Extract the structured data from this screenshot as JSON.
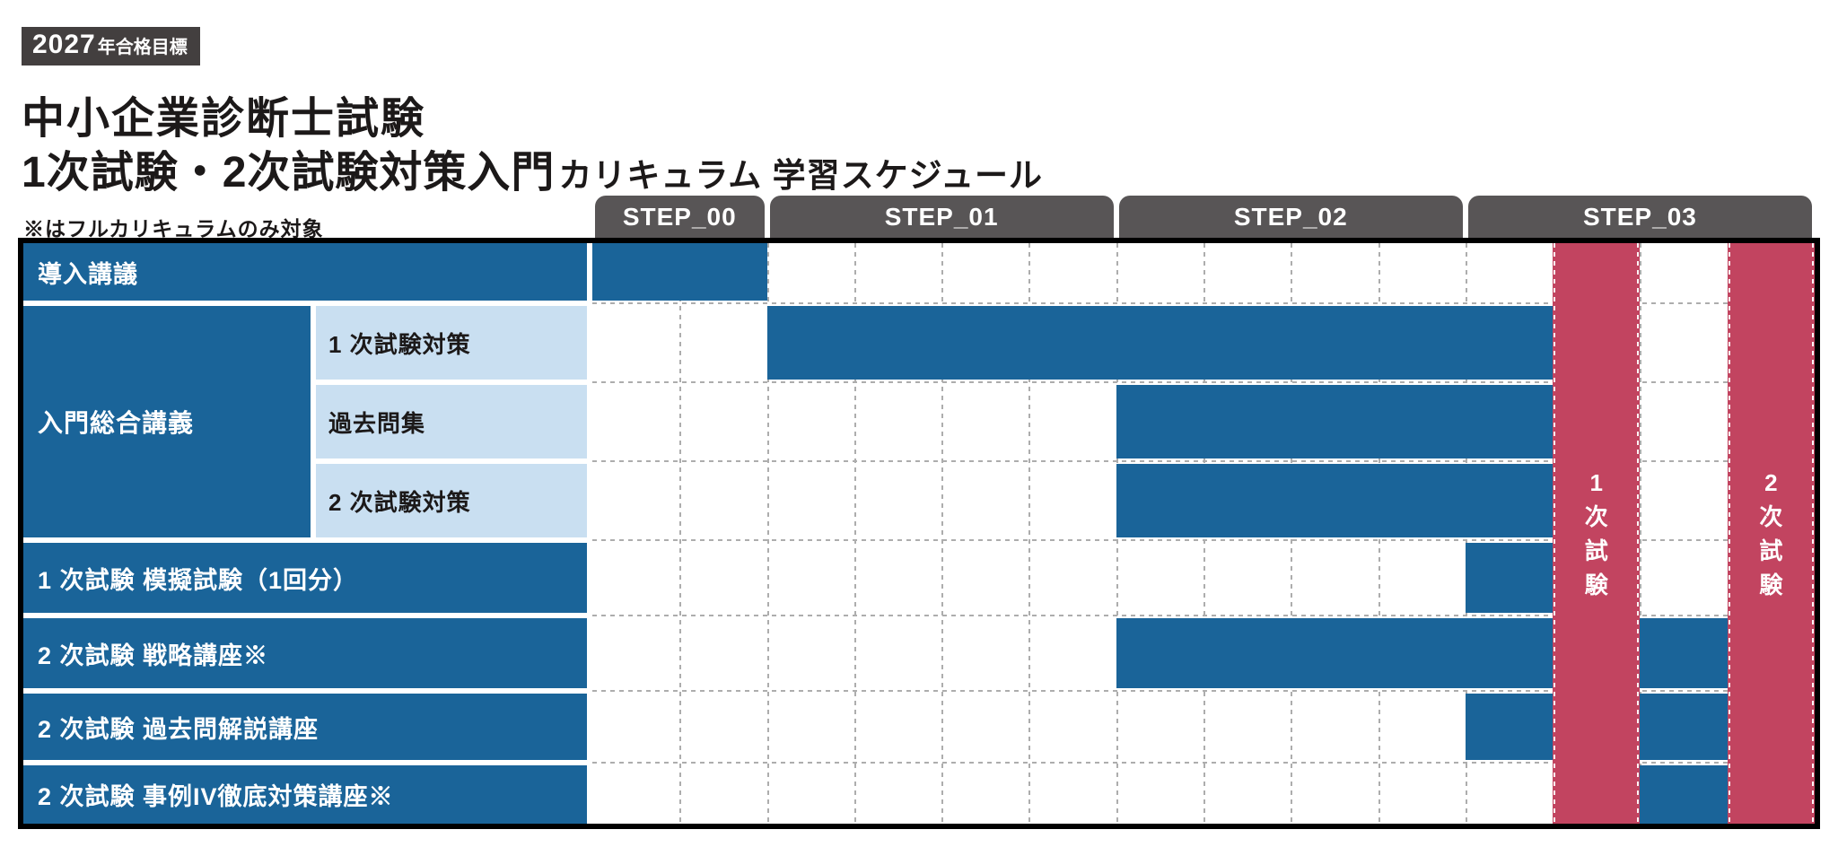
{
  "page": {
    "badge": {
      "year": "2027",
      "suffix": "年合格目標"
    },
    "title_line1": "中小企業診断士試験",
    "title_line2_main": "1次試験・2次試験対策入門",
    "title_line2_sub": "カリキュラム 学習スケジュール",
    "note": "※はフルカリキュラムのみ対象"
  },
  "colors": {
    "bar_blue": "#1a6499",
    "sub_label_blue": "#c9dff1",
    "exam_red": "#c24460",
    "tab_gray": "#585556",
    "badge_gray": "#433f3f",
    "grid_gray": "#adadad",
    "text_black": "#1c1919",
    "label_text_white": "#ffffff"
  },
  "chart_data": {
    "type": "gantt",
    "title": "1次試験・2次試験対策入門カリキュラム 学習スケジュール",
    "columns_total": 14,
    "grid": "dashed",
    "steps": [
      {
        "label": "STEP_00",
        "col_start": 1,
        "col_end": 2
      },
      {
        "label": "STEP_01",
        "col_start": 3,
        "col_end": 6
      },
      {
        "label": "STEP_02",
        "col_start": 7,
        "col_end": 10
      },
      {
        "label": "STEP_03",
        "col_start": 11,
        "col_end": 14
      }
    ],
    "group": {
      "label": "入門総合講義",
      "row_start": 2,
      "row_end": 4
    },
    "rows": [
      {
        "label": "導入講議",
        "label_type": "full",
        "bars": [
          [
            1,
            2
          ]
        ]
      },
      {
        "label": "1 次試験対策",
        "label_type": "sub",
        "bars": [
          [
            3,
            11
          ]
        ]
      },
      {
        "label": "過去問集",
        "label_type": "sub",
        "bars": [
          [
            7,
            11
          ]
        ]
      },
      {
        "label": "2 次試験対策",
        "label_type": "sub",
        "bars": [
          [
            7,
            11
          ]
        ]
      },
      {
        "label": "1 次試験 模擬試験（1回分）",
        "label_type": "full",
        "bars": [
          [
            11,
            11
          ]
        ]
      },
      {
        "label": "2 次試験 戦略講座※",
        "label_type": "full",
        "bars": [
          [
            7,
            11
          ],
          [
            13,
            13
          ]
        ]
      },
      {
        "label": "2 次試験 過去問解説講座",
        "label_type": "full",
        "bars": [
          [
            11,
            11
          ],
          [
            13,
            13
          ]
        ]
      },
      {
        "label": "2 次試験 事例IV徹底対策講座※",
        "label_type": "full",
        "bars": [
          [
            13,
            13
          ]
        ]
      }
    ],
    "exam_columns": [
      {
        "label": "1次試験",
        "col": 12
      },
      {
        "label": "2次試験",
        "col": 14
      }
    ]
  }
}
